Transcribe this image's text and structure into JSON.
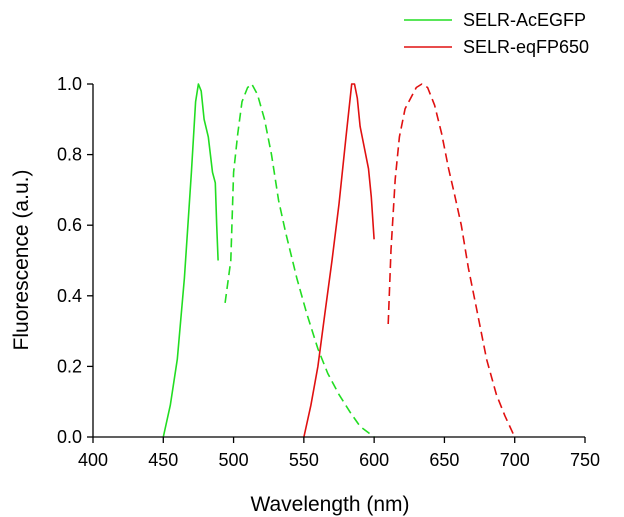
{
  "chart_data": {
    "type": "line",
    "title": "",
    "xlabel": "Wavelength (nm)",
    "ylabel": "Fluorescence (a.u.)",
    "xlim": [
      400,
      750
    ],
    "ylim": [
      0,
      1.0
    ],
    "x_ticks": [
      400,
      450,
      500,
      550,
      600,
      650,
      700,
      750
    ],
    "y_ticks": [
      0.0,
      0.2,
      0.4,
      0.6,
      0.8,
      1.0
    ],
    "x_tick_labels": [
      "400",
      "450",
      "500",
      "550",
      "600",
      "650",
      "700",
      "750"
    ],
    "y_tick_labels": [
      "0.0",
      "0.2",
      "0.4",
      "0.6",
      "0.8",
      "1.0"
    ],
    "grid": false,
    "legend_position": "top-right",
    "legend": [
      {
        "name": "SELR-AcEGFP",
        "color": "#22dd22"
      },
      {
        "name": "SELR-eqFP650",
        "color": "#e01010"
      }
    ],
    "series": [
      {
        "legend_name": "SELR-AcEGFP",
        "curve": "excitation",
        "style": "solid",
        "color": "#22dd22",
        "points": [
          [
            450,
            0
          ],
          [
            455,
            0.09
          ],
          [
            460,
            0.22
          ],
          [
            465,
            0.45
          ],
          [
            470,
            0.75
          ],
          [
            473,
            0.95
          ],
          [
            475,
            1.0
          ],
          [
            477,
            0.98
          ],
          [
            479,
            0.9
          ],
          [
            482,
            0.85
          ],
          [
            485,
            0.75
          ],
          [
            487,
            0.72
          ],
          [
            488,
            0.6
          ],
          [
            489,
            0.5
          ]
        ]
      },
      {
        "legend_name": "SELR-AcEGFP",
        "curve": "emission",
        "style": "dashed",
        "color": "#22dd22",
        "points": [
          [
            494,
            0.38
          ],
          [
            498,
            0.5
          ],
          [
            500,
            0.75
          ],
          [
            503,
            0.86
          ],
          [
            506,
            0.95
          ],
          [
            510,
            0.99
          ],
          [
            513,
            1.0
          ],
          [
            517,
            0.97
          ],
          [
            522,
            0.9
          ],
          [
            527,
            0.8
          ],
          [
            532,
            0.67
          ],
          [
            537,
            0.58
          ],
          [
            545,
            0.45
          ],
          [
            552,
            0.35
          ],
          [
            560,
            0.25
          ],
          [
            567,
            0.18
          ],
          [
            575,
            0.12
          ],
          [
            583,
            0.07
          ],
          [
            590,
            0.03
          ],
          [
            600,
            0
          ]
        ]
      },
      {
        "legend_name": "SELR-eqFP650",
        "curve": "excitation",
        "style": "solid",
        "color": "#e01010",
        "points": [
          [
            550,
            0
          ],
          [
            555,
            0.09
          ],
          [
            560,
            0.2
          ],
          [
            565,
            0.35
          ],
          [
            570,
            0.5
          ],
          [
            575,
            0.66
          ],
          [
            580,
            0.85
          ],
          [
            584,
            1.0
          ],
          [
            586,
            1.0
          ],
          [
            588,
            0.96
          ],
          [
            590,
            0.88
          ],
          [
            593,
            0.82
          ],
          [
            596,
            0.76
          ],
          [
            598,
            0.68
          ],
          [
            600,
            0.56
          ]
        ]
      },
      {
        "legend_name": "SELR-eqFP650",
        "curve": "emission",
        "style": "dashed",
        "color": "#e01010",
        "points": [
          [
            610,
            0.32
          ],
          [
            612,
            0.53
          ],
          [
            615,
            0.73
          ],
          [
            618,
            0.85
          ],
          [
            622,
            0.93
          ],
          [
            626,
            0.96
          ],
          [
            630,
            0.99
          ],
          [
            634,
            1.0
          ],
          [
            638,
            0.99
          ],
          [
            643,
            0.94
          ],
          [
            648,
            0.86
          ],
          [
            653,
            0.76
          ],
          [
            657,
            0.69
          ],
          [
            662,
            0.6
          ],
          [
            667,
            0.48
          ],
          [
            673,
            0.36
          ],
          [
            680,
            0.22
          ],
          [
            687,
            0.12
          ],
          [
            693,
            0.06
          ],
          [
            700,
            0
          ]
        ]
      }
    ]
  }
}
